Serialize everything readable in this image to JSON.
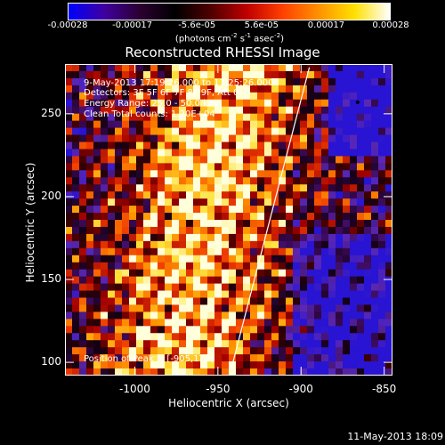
{
  "colorbar": {
    "tick_labels": [
      "-0.00028",
      "-0.00017",
      "-5.6e-05",
      "5.6e-05",
      "0.00017",
      "0.00028"
    ],
    "units_main": "(photons cm",
    "units_sup1": "-2",
    "units_mid": " s",
    "units_sup2": "-1",
    "units_end": " asec",
    "units_sup3": "-2",
    "units_close": ")",
    "colors": [
      "#0000ff",
      "#4000a0",
      "#2a0030",
      "#000000",
      "#500000",
      "#c00000",
      "#ff4000",
      "#ff9000",
      "#ffe000",
      "#ffffff"
    ]
  },
  "header": {
    "title": "Reconstructed RHESSI Image"
  },
  "info": {
    "time_range": "9-May-2013 17:19:26.000 to 17:25:26.000",
    "detectors": "Detectors: 3F 5F 6F 7F 8F 9F, Att 0",
    "energy": "Energy Range: 25.0 - 50.0 keV",
    "method": "Clean     Total counts: 1.20E+04",
    "peak": "Position of Peak = [-905,172]"
  },
  "footer": {
    "date": "11-May-2013 18:09"
  },
  "chart_data": {
    "type": "heatmap",
    "title": "Reconstructed RHESSI Image",
    "xlabel": "Heliocentric X (arcsec)",
    "ylabel": "Heliocentric Y (arcsec)",
    "xlim": [
      -1042,
      -845
    ],
    "ylim": [
      92,
      280
    ],
    "xticks": [
      -1000,
      -950,
      -900,
      -850
    ],
    "xtick_labels": [
      "-1000",
      "-950",
      "-900",
      "-850"
    ],
    "yticks": [
      100,
      150,
      200,
      250
    ],
    "ytick_labels": [
      "100",
      "150",
      "200",
      "250"
    ],
    "color_range": [
      -0.00028,
      0.00028
    ],
    "limb_line": {
      "x": [
        -942,
        -895
      ],
      "y": [
        96,
        278
      ]
    },
    "peak": [
      -905,
      172
    ]
  }
}
